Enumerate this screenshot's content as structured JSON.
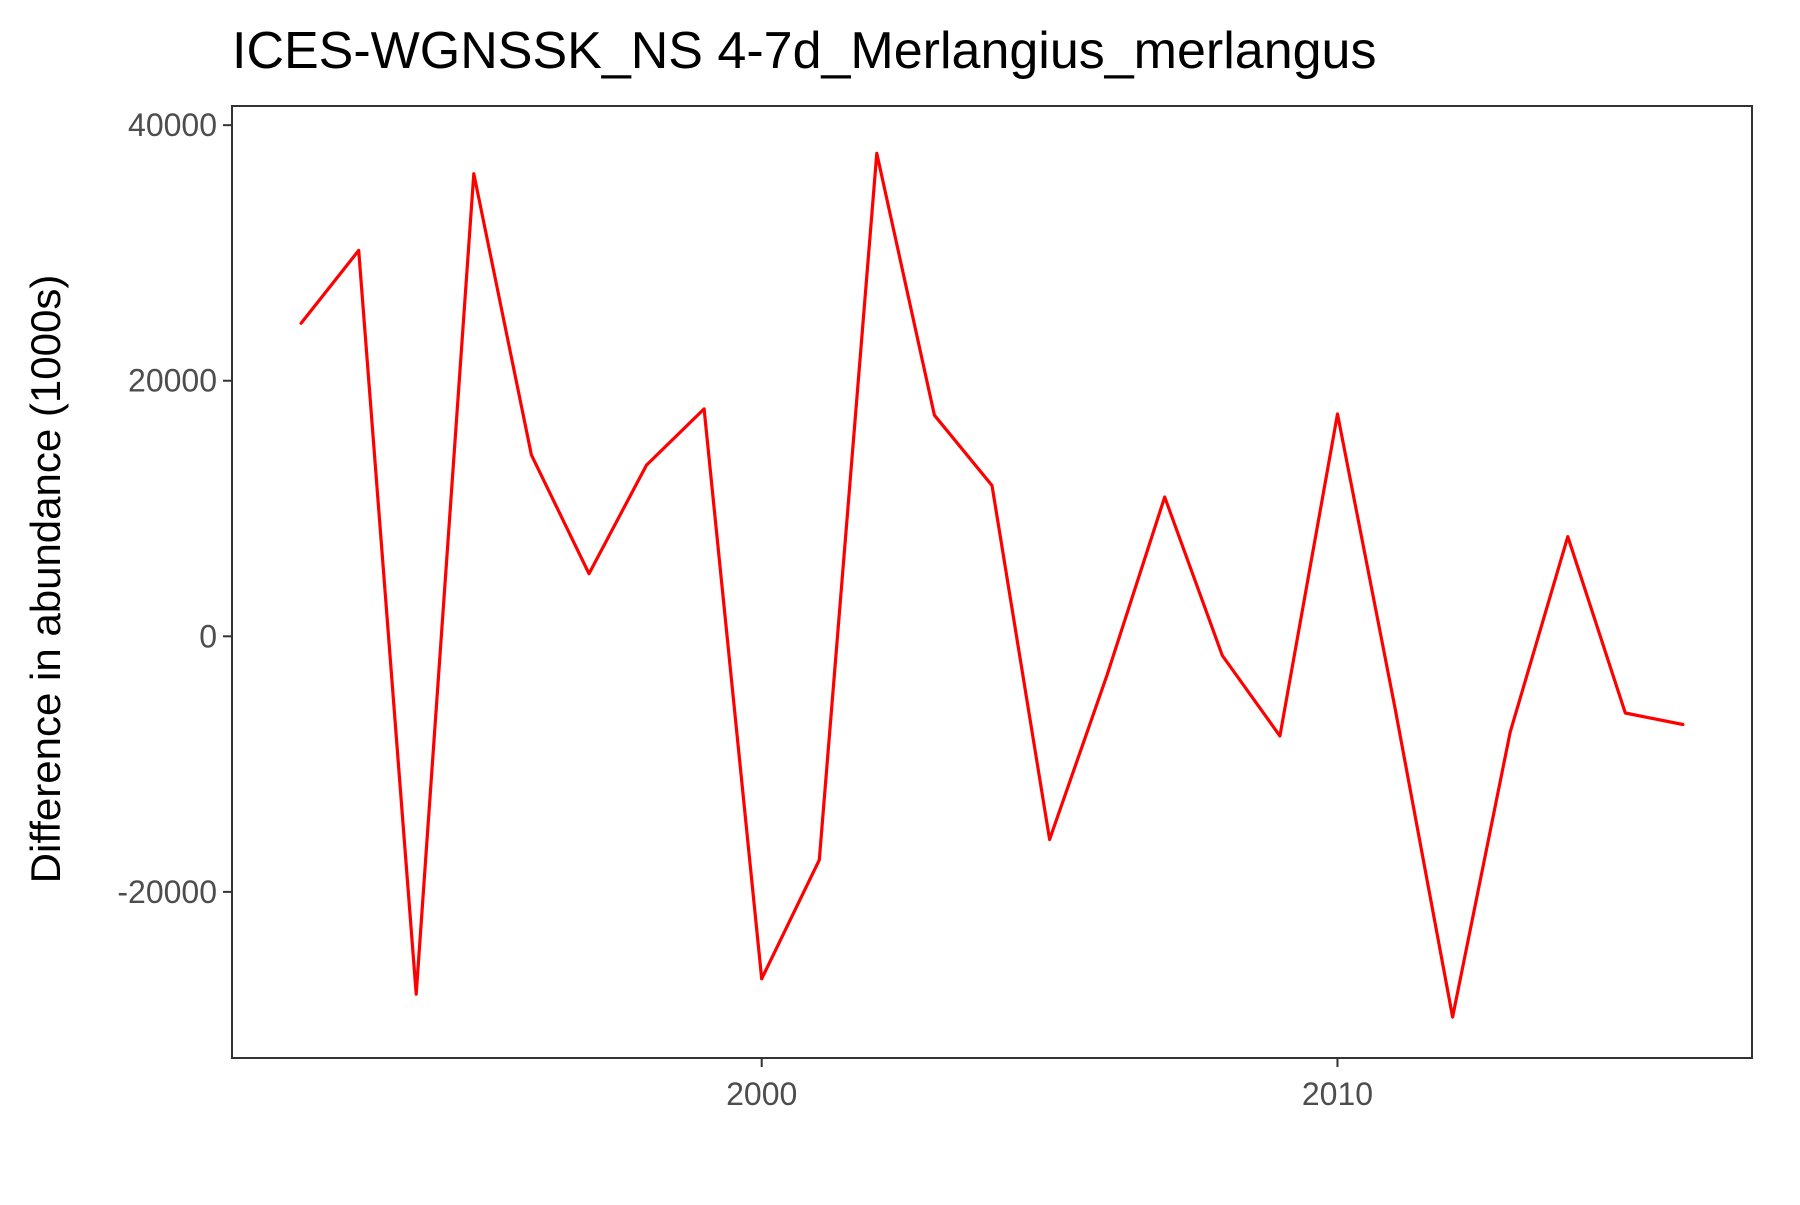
{
  "chart_data": {
    "type": "line",
    "title": "ICES-WGNSSK_NS 4-7d_Merlangius_merlangus",
    "xlabel": "",
    "ylabel": "Difference in abundance (1000s)",
    "xlim": [
      1990.8,
      2017.2
    ],
    "ylim": [
      -33000,
      41500
    ],
    "x_ticks": [
      2000,
      2010
    ],
    "x_tick_labels": [
      "2000",
      "2010"
    ],
    "y_ticks": [
      40000,
      20000,
      0,
      -20000
    ],
    "y_tick_labels": [
      "40000",
      "20000",
      "0",
      "-20000"
    ],
    "grid": false,
    "legend": "none",
    "series": [
      {
        "color": "#ff0000",
        "x": [
          1992,
          1993,
          1994,
          1995,
          1996,
          1997,
          1998,
          1999,
          2000,
          2001,
          2002,
          2003,
          2004,
          2005,
          2006,
          2007,
          2008,
          2009,
          2010,
          2011,
          2012,
          2013,
          2014,
          2015,
          2016
        ],
        "y": [
          24500,
          30200,
          -28000,
          36200,
          14200,
          4900,
          13400,
          17800,
          -26800,
          -17500,
          37800,
          17300,
          11800,
          -15900,
          -3000,
          10900,
          -1500,
          -7800,
          17400,
          -5600,
          -29800,
          -7500,
          7800,
          -6000,
          -6900
        ]
      }
    ]
  }
}
